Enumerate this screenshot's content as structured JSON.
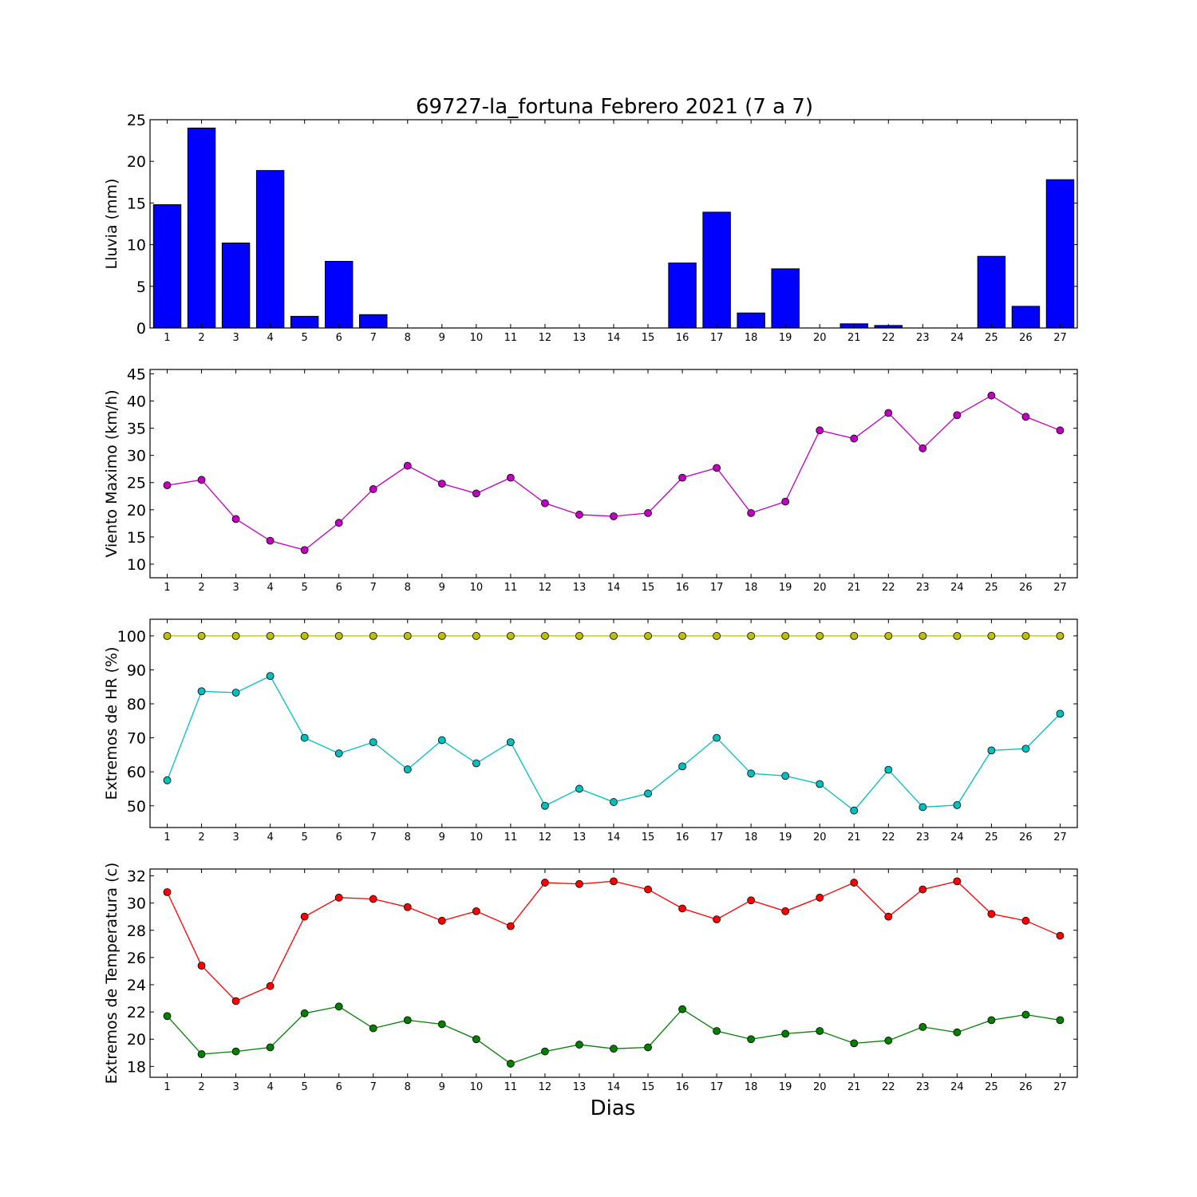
{
  "title": "69727-la_fortuna Febrero 2021  (7 a 7)",
  "xlabel": "Dias",
  "chart_data": [
    {
      "type": "bar",
      "ylabel": "Lluvia (mm)",
      "categories": [
        1,
        2,
        3,
        4,
        5,
        6,
        7,
        8,
        9,
        10,
        11,
        12,
        13,
        14,
        15,
        16,
        17,
        18,
        19,
        20,
        21,
        22,
        23,
        24,
        25,
        26,
        27
      ],
      "ylim": [
        0,
        25
      ],
      "yticks": [
        0,
        5,
        10,
        15,
        20,
        25
      ],
      "color": "#0000ff",
      "values": [
        14.8,
        24.0,
        10.2,
        18.9,
        1.4,
        8.0,
        1.6,
        0,
        0,
        0,
        0,
        0,
        0,
        0,
        0,
        7.8,
        13.9,
        1.8,
        7.1,
        0,
        0.5,
        0.3,
        0,
        0,
        8.6,
        2.6,
        17.8
      ]
    },
    {
      "type": "line",
      "ylabel": "Viento Maximo (km/h)",
      "categories": [
        1,
        2,
        3,
        4,
        5,
        6,
        7,
        8,
        9,
        10,
        11,
        12,
        13,
        14,
        15,
        16,
        17,
        18,
        19,
        20,
        21,
        22,
        23,
        24,
        25,
        26,
        27
      ],
      "ylim": [
        7.5,
        45.8
      ],
      "yticks": [
        10,
        15,
        20,
        25,
        30,
        35,
        40,
        45
      ],
      "series": [
        {
          "color": "#bf00bf",
          "values": [
            24.5,
            25.5,
            18.3,
            14.3,
            12.6,
            17.6,
            23.8,
            28.1,
            24.8,
            23.0,
            25.9,
            21.2,
            19.1,
            18.8,
            19.4,
            25.9,
            27.7,
            19.4,
            21.5,
            34.6,
            33.1,
            37.8,
            31.3,
            37.4,
            41.0,
            37.1,
            34.6
          ]
        }
      ]
    },
    {
      "type": "line",
      "ylabel": "Extremos de HR (%)",
      "categories": [
        1,
        2,
        3,
        4,
        5,
        6,
        7,
        8,
        9,
        10,
        11,
        12,
        13,
        14,
        15,
        16,
        17,
        18,
        19,
        20,
        21,
        22,
        23,
        24,
        25,
        26,
        27
      ],
      "ylim": [
        43.6,
        104.9
      ],
      "yticks": [
        50,
        60,
        70,
        80,
        90,
        100
      ],
      "series": [
        {
          "color": "#bfbf00",
          "values": [
            100,
            100,
            100,
            100,
            100,
            100,
            100,
            100,
            100,
            100,
            100,
            100,
            100,
            100,
            100,
            100,
            100,
            100,
            100,
            100,
            100,
            100,
            100,
            100,
            100,
            100,
            100
          ]
        },
        {
          "color": "#00bfbf",
          "values": [
            57.5,
            83.7,
            83.3,
            88.2,
            70.0,
            65.4,
            68.7,
            60.7,
            69.3,
            62.5,
            68.7,
            50.0,
            55.0,
            51.1,
            53.6,
            61.6,
            70.0,
            59.5,
            58.8,
            56.4,
            48.6,
            60.6,
            49.6,
            50.2,
            66.3,
            66.8,
            77.1
          ]
        }
      ]
    },
    {
      "type": "line",
      "ylabel": "Extremos de Temperatura (c)",
      "categories": [
        1,
        2,
        3,
        4,
        5,
        6,
        7,
        8,
        9,
        10,
        11,
        12,
        13,
        14,
        15,
        16,
        17,
        18,
        19,
        20,
        21,
        22,
        23,
        24,
        25,
        26,
        27
      ],
      "ylim": [
        17.2,
        32.5
      ],
      "yticks": [
        18,
        20,
        22,
        24,
        26,
        28,
        30,
        32
      ],
      "series": [
        {
          "color": "#ff0000",
          "values": [
            30.8,
            25.4,
            22.8,
            23.9,
            29.0,
            30.4,
            30.3,
            29.7,
            28.7,
            29.4,
            28.3,
            31.5,
            31.4,
            31.6,
            31.0,
            29.6,
            28.8,
            30.2,
            29.4,
            30.4,
            31.5,
            29.0,
            31.0,
            31.6,
            29.2,
            28.7,
            27.6
          ]
        },
        {
          "color": "#007f00",
          "values": [
            21.7,
            18.9,
            19.1,
            19.4,
            21.9,
            22.4,
            20.8,
            21.4,
            21.1,
            20.0,
            18.2,
            19.1,
            19.6,
            19.3,
            19.4,
            22.2,
            20.6,
            20.0,
            20.4,
            20.6,
            19.7,
            19.9,
            20.9,
            20.5,
            21.4,
            21.8,
            21.4
          ]
        }
      ]
    }
  ]
}
